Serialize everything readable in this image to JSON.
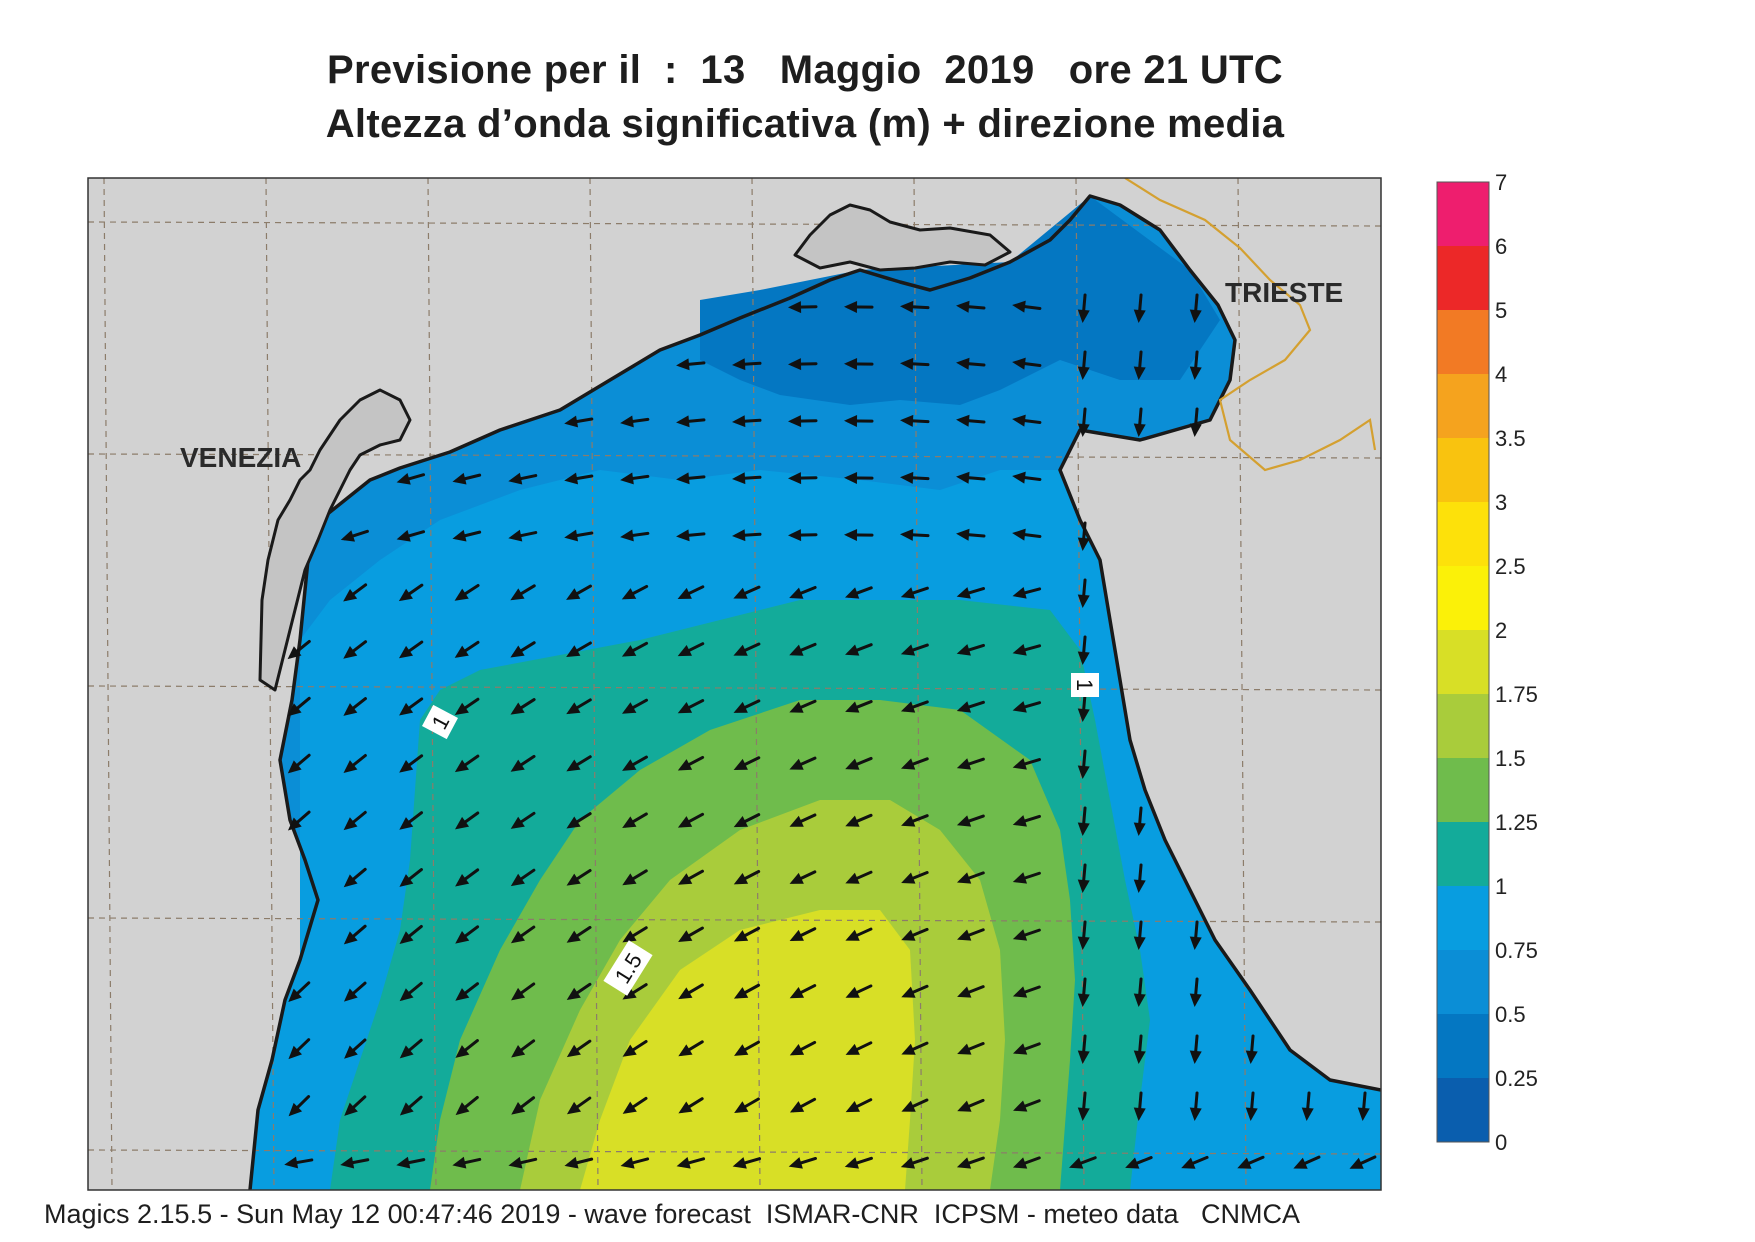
{
  "title": {
    "line1": "Previsione per il  :  13   Maggio  2019   ore 21 UTC",
    "line2": "Altezza d’onda significativa (m) + direzione media"
  },
  "footer": "Magics 2.15.5 - Sun May 12 00:47:46 2019 - wave forecast  ISMAR-CNR  ICPSM - meteo data   CNMCA",
  "map": {
    "cities": [
      "VENEZIA",
      "TRIESTE"
    ],
    "contour_labels": [
      "1",
      "1",
      "1.5"
    ],
    "land_color": "#d2d2d2",
    "coast_color": "#1a1a1a",
    "border_color": "#d4a030"
  },
  "legend": {
    "labels": [
      "7",
      "6",
      "5",
      "4",
      "3.5",
      "3",
      "2.5",
      "2",
      "1.75",
      "1.5",
      "1.25",
      "1",
      "0.75",
      "0.5",
      "0.25",
      "0"
    ],
    "colors": [
      "#ee1e6e",
      "#ec2828",
      "#f27a24",
      "#f5a31e",
      "#f9c30f",
      "#fde10a",
      "#fbf108",
      "#d8df26",
      "#a9cc3b",
      "#6fbc4c",
      "#13ab9a",
      "#089de0",
      "#0b8ed6",
      "#0477c2",
      "#0a5eae"
    ]
  }
}
